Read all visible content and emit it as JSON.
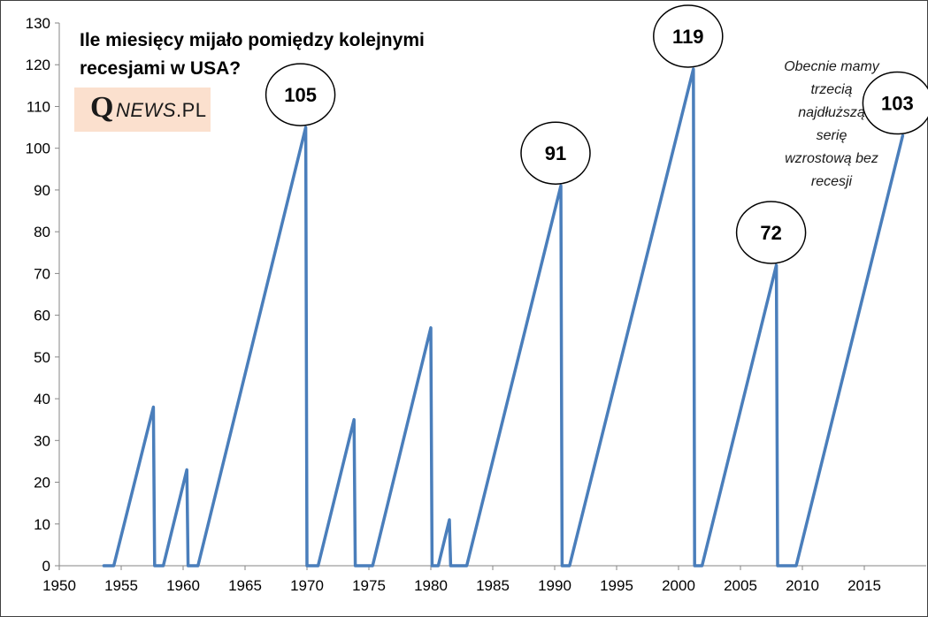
{
  "title_line1": "Ile miesięcy mijało pomiędzy kolejnymi",
  "title_line2": "recesjami w USA?",
  "logo": {
    "q": "Q",
    "news": "NEWS",
    "suffix": ".PL",
    "bg_color": "#fbe0ce"
  },
  "note_lines": [
    "Obecnie mamy",
    "trzecią",
    "najdłuższą",
    "serię",
    "wzrostową bez",
    "recesji"
  ],
  "colors": {
    "line": "#4a7ebb",
    "axis": "#868686",
    "border": "#404040"
  },
  "chart_data": {
    "type": "line",
    "title": "Ile miesięcy mijało pomiędzy kolejnymi recesjami w USA?",
    "xlabel": "",
    "ylabel": "",
    "xlim": [
      1950,
      2020
    ],
    "ylim": [
      0,
      130
    ],
    "x_ticks": [
      1950,
      1955,
      1960,
      1965,
      1970,
      1975,
      1980,
      1985,
      1990,
      1995,
      2000,
      2005,
      2010,
      2015
    ],
    "y_ticks": [
      0,
      10,
      20,
      30,
      40,
      50,
      60,
      70,
      80,
      90,
      100,
      110,
      120,
      130
    ],
    "grid": false,
    "legend": "none",
    "series": [
      {
        "points": [
          [
            1953.6,
            0
          ],
          [
            1954.4,
            0
          ],
          [
            1957.6,
            38
          ],
          [
            1957.7,
            0
          ],
          [
            1958.4,
            0
          ],
          [
            1960.3,
            23
          ],
          [
            1960.4,
            0
          ],
          [
            1961.2,
            0
          ],
          [
            1969.9,
            105
          ],
          [
            1970.0,
            0
          ],
          [
            1970.9,
            0
          ],
          [
            1973.8,
            35
          ],
          [
            1973.9,
            0
          ],
          [
            1975.3,
            0
          ],
          [
            1980.0,
            57
          ],
          [
            1980.1,
            0
          ],
          [
            1980.6,
            0
          ],
          [
            1981.5,
            11
          ],
          [
            1981.6,
            0
          ],
          [
            1982.9,
            0
          ],
          [
            1990.5,
            91
          ],
          [
            1990.6,
            0
          ],
          [
            1991.2,
            0
          ],
          [
            2001.2,
            119
          ],
          [
            2001.3,
            0
          ],
          [
            2001.9,
            0
          ],
          [
            2007.9,
            72
          ],
          [
            2008.0,
            0
          ],
          [
            2009.5,
            0
          ],
          [
            2018.1,
            103
          ]
        ]
      }
    ],
    "callouts": [
      {
        "x": 1969.9,
        "y": 105,
        "label": "105"
      },
      {
        "x": 1990.5,
        "y": 91,
        "label": "91"
      },
      {
        "x": 2001.2,
        "y": 119,
        "label": "119"
      },
      {
        "x": 2007.9,
        "y": 72,
        "label": "72"
      },
      {
        "x": 2018.1,
        "y": 103,
        "label": "103"
      }
    ]
  }
}
